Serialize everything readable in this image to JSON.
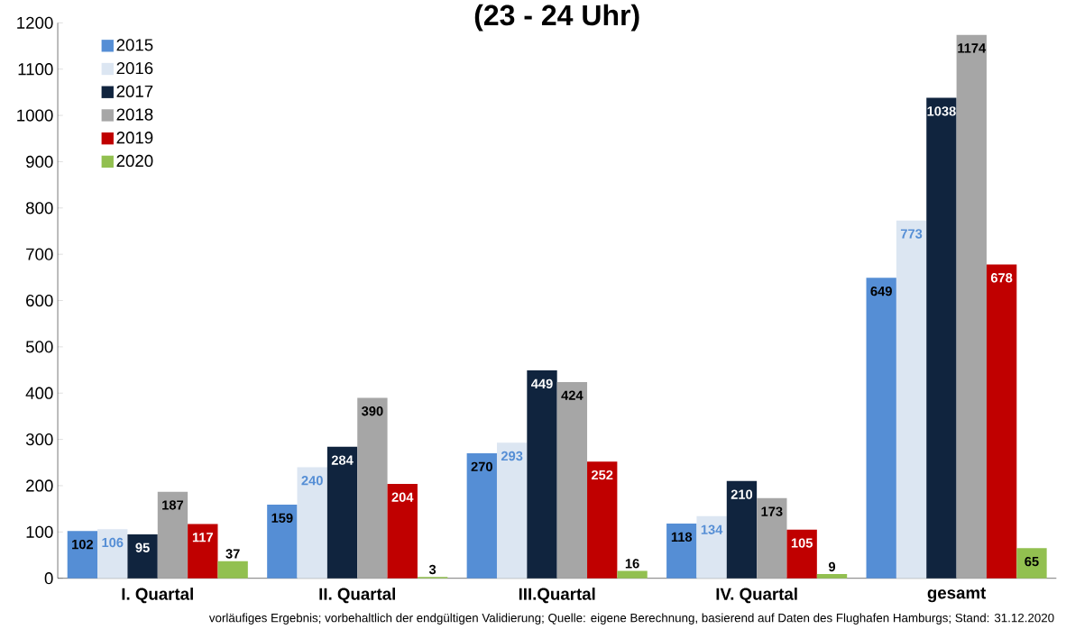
{
  "chart_data": {
    "type": "bar",
    "title": "(23 - 24 Uhr)",
    "categories": [
      "I. Quartal",
      "II. Quartal",
      "III.Quartal",
      "IV. Quartal",
      "gesamt"
    ],
    "series": [
      {
        "name": "2015",
        "color": "#558ed5",
        "values": [
          102,
          159,
          270,
          118,
          649
        ]
      },
      {
        "name": "2016",
        "color": "#dce6f2",
        "values": [
          106,
          240,
          293,
          134,
          773
        ]
      },
      {
        "name": "2017",
        "color": "#10243e",
        "values": [
          95,
          284,
          449,
          210,
          1038
        ]
      },
      {
        "name": "2018",
        "color": "#a6a6a6",
        "values": [
          187,
          390,
          424,
          173,
          1174
        ]
      },
      {
        "name": "2019",
        "color": "#c00000",
        "values": [
          117,
          204,
          252,
          105,
          678
        ]
      },
      {
        "name": "2020",
        "color": "#92c050",
        "values": [
          37,
          3,
          16,
          9,
          65
        ]
      }
    ],
    "ylim": [
      0,
      1200
    ],
    "yticks": [
      0,
      100,
      200,
      300,
      400,
      500,
      600,
      700,
      800,
      900,
      1000,
      1100,
      1200
    ],
    "data_labels": true,
    "legend": "top left",
    "grid": false,
    "annotations": [
      "vorläufiges Ergebnis; vorbehaltlich der endgültigen Validierung; Quelle: eigene Berechnung, basierend auf  Daten des Flughafen Hamburgs; Stand: 31.12.2020"
    ]
  }
}
